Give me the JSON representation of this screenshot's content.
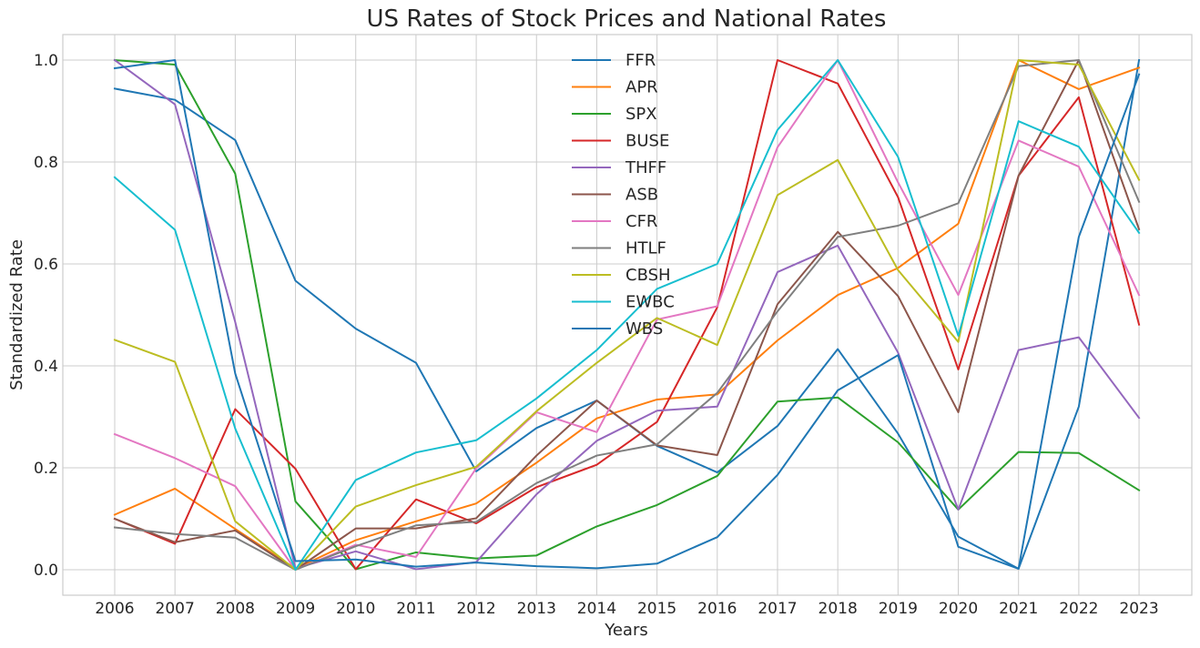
{
  "chart_data": {
    "type": "line",
    "title": "US Rates of Stock Prices and National Rates",
    "xlabel": "Years",
    "ylabel": "Standardized Rate",
    "x": [
      "2006",
      "2007",
      "2008",
      "2009",
      "2010",
      "2011",
      "2012",
      "2013",
      "2014",
      "2015",
      "2016",
      "2017",
      "2018",
      "2019",
      "2020",
      "2021",
      "2022",
      "2023"
    ],
    "ylim": [
      -0.05,
      1.05
    ],
    "yticks": [
      "0.0",
      "0.2",
      "0.4",
      "0.6",
      "0.8",
      "1.0"
    ],
    "ytick_values": [
      0.0,
      0.2,
      0.4,
      0.6,
      0.8,
      1.0
    ],
    "grid": true,
    "legend_position": "top-center",
    "series": [
      {
        "name": "FFR",
        "color": "#1f77b4",
        "values": [
          0.944,
          0.922,
          0.843,
          0.567,
          0.473,
          0.406,
          0.193,
          0.278,
          0.332,
          0.243,
          0.191,
          0.282,
          0.433,
          0.267,
          0.065,
          0.002,
          0.32,
          1.0
        ]
      },
      {
        "name": "APR",
        "color": "#ff7f0e",
        "values": [
          0.108,
          0.159,
          0.08,
          0.002,
          0.058,
          0.095,
          0.13,
          0.21,
          0.297,
          0.334,
          0.344,
          0.45,
          0.539,
          0.592,
          0.679,
          1.0,
          0.943,
          0.985
        ]
      },
      {
        "name": "SPX",
        "color": "#2ca02c",
        "values": [
          1.0,
          0.991,
          0.777,
          0.134,
          0.001,
          0.034,
          0.022,
          0.028,
          0.085,
          0.127,
          0.184,
          0.33,
          0.338,
          0.25,
          0.118,
          0.231,
          0.229,
          0.156
        ]
      },
      {
        "name": "BUSE",
        "color": "#d62728",
        "values": [
          0.1,
          0.051,
          0.315,
          0.198,
          0.001,
          0.138,
          0.091,
          0.162,
          0.206,
          0.29,
          0.515,
          1.0,
          0.954,
          0.731,
          0.393,
          0.773,
          0.927,
          0.481
        ]
      },
      {
        "name": "THFF",
        "color": "#9467bd",
        "values": [
          1.0,
          0.913,
          0.486,
          0.003,
          0.036,
          0.001,
          0.015,
          0.148,
          0.253,
          0.312,
          0.32,
          0.584,
          0.636,
          0.426,
          0.118,
          0.431,
          0.456,
          0.298
        ]
      },
      {
        "name": "ASB",
        "color": "#8c564b",
        "values": [
          0.1,
          0.054,
          0.077,
          0.0,
          0.081,
          0.081,
          0.101,
          0.224,
          0.332,
          0.244,
          0.225,
          0.521,
          0.663,
          0.537,
          0.309,
          0.773,
          1.0,
          0.668
        ]
      },
      {
        "name": "CFR",
        "color": "#e377c2",
        "values": [
          0.266,
          0.219,
          0.164,
          0.0,
          0.049,
          0.025,
          0.199,
          0.309,
          0.27,
          0.491,
          0.517,
          0.829,
          1.0,
          0.76,
          0.539,
          0.842,
          0.791,
          0.539
        ]
      },
      {
        "name": "HTLF",
        "color": "#7f7f7f",
        "values": [
          0.083,
          0.07,
          0.063,
          0.0,
          0.046,
          0.087,
          0.094,
          0.17,
          0.224,
          0.246,
          0.347,
          0.507,
          0.653,
          0.675,
          0.719,
          0.988,
          1.0,
          0.722
        ]
      },
      {
        "name": "CBSH",
        "color": "#bcbd22",
        "values": [
          0.451,
          0.408,
          0.095,
          0.0,
          0.124,
          0.166,
          0.202,
          0.311,
          0.406,
          0.494,
          0.441,
          0.735,
          0.804,
          0.588,
          0.447,
          1.0,
          0.991,
          0.765
        ]
      },
      {
        "name": "EWBC",
        "color": "#17becf",
        "values": [
          0.77,
          0.667,
          0.277,
          0.0,
          0.176,
          0.23,
          0.254,
          0.336,
          0.431,
          0.551,
          0.6,
          0.863,
          1.0,
          0.81,
          0.459,
          0.88,
          0.83,
          0.661
        ]
      },
      {
        "name": "WBS",
        "color": "#1f77b4",
        "values": [
          0.984,
          1.0,
          0.385,
          0.017,
          0.02,
          0.006,
          0.014,
          0.007,
          0.003,
          0.012,
          0.064,
          0.186,
          0.352,
          0.421,
          0.045,
          0.002,
          0.653,
          0.972
        ]
      }
    ]
  }
}
